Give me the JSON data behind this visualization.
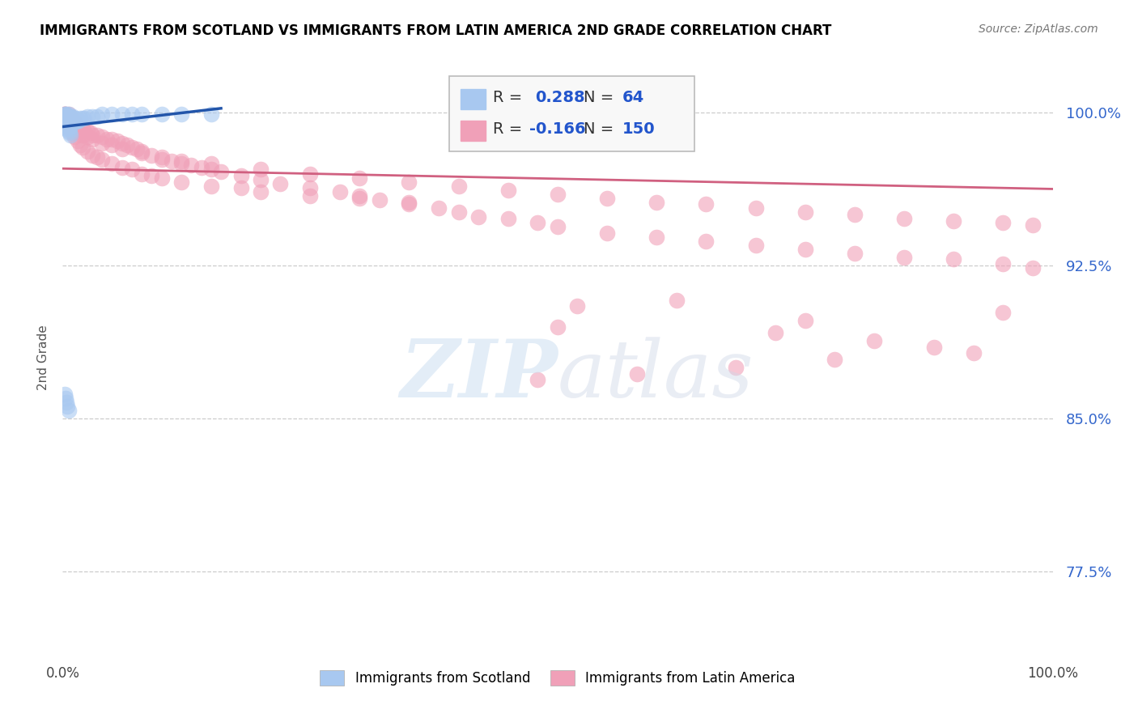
{
  "title": "IMMIGRANTS FROM SCOTLAND VS IMMIGRANTS FROM LATIN AMERICA 2ND GRADE CORRELATION CHART",
  "source": "Source: ZipAtlas.com",
  "ylabel": "2nd Grade",
  "ytick_labels": [
    "77.5%",
    "85.0%",
    "92.5%",
    "100.0%"
  ],
  "ytick_values": [
    0.775,
    0.85,
    0.925,
    1.0
  ],
  "xlim": [
    0.0,
    1.0
  ],
  "ylim": [
    0.735,
    1.025
  ],
  "blue_color": "#A8C8F0",
  "pink_color": "#F0A0B8",
  "blue_line_color": "#2255AA",
  "pink_line_color": "#D06080",
  "blue_scatter_x": [
    0.001,
    0.001,
    0.002,
    0.002,
    0.002,
    0.003,
    0.003,
    0.003,
    0.004,
    0.004,
    0.004,
    0.005,
    0.005,
    0.005,
    0.006,
    0.006,
    0.006,
    0.007,
    0.007,
    0.008,
    0.008,
    0.009,
    0.009,
    0.01,
    0.01,
    0.011,
    0.012,
    0.012,
    0.013,
    0.014,
    0.015,
    0.016,
    0.018,
    0.02,
    0.022,
    0.025,
    0.03,
    0.035,
    0.04,
    0.05,
    0.06,
    0.07,
    0.08,
    0.1,
    0.12,
    0.15,
    0.003,
    0.004,
    0.005,
    0.006,
    0.007,
    0.008,
    0.002,
    0.003,
    0.004,
    0.005,
    0.006,
    0.002,
    0.003,
    0.003,
    0.004,
    0.005,
    0.006,
    0.007
  ],
  "blue_scatter_y": [
    0.998,
    0.996,
    0.999,
    0.997,
    0.995,
    0.999,
    0.998,
    0.996,
    0.999,
    0.997,
    0.995,
    0.998,
    0.997,
    0.995,
    0.999,
    0.997,
    0.995,
    0.998,
    0.996,
    0.998,
    0.996,
    0.997,
    0.995,
    0.998,
    0.996,
    0.997,
    0.997,
    0.995,
    0.996,
    0.996,
    0.996,
    0.996,
    0.997,
    0.997,
    0.997,
    0.998,
    0.998,
    0.998,
    0.999,
    0.999,
    0.999,
    0.999,
    0.999,
    0.999,
    0.999,
    0.999,
    0.994,
    0.993,
    0.992,
    0.991,
    0.99,
    0.989,
    0.862,
    0.86,
    0.858,
    0.856,
    0.854,
    0.998,
    0.997,
    0.996,
    0.995,
    0.994,
    0.993,
    0.992
  ],
  "pink_scatter_x": [
    0.001,
    0.002,
    0.002,
    0.003,
    0.003,
    0.004,
    0.004,
    0.005,
    0.005,
    0.006,
    0.006,
    0.007,
    0.007,
    0.008,
    0.008,
    0.009,
    0.009,
    0.01,
    0.011,
    0.012,
    0.013,
    0.014,
    0.015,
    0.016,
    0.018,
    0.02,
    0.022,
    0.025,
    0.028,
    0.03,
    0.035,
    0.04,
    0.045,
    0.05,
    0.055,
    0.06,
    0.065,
    0.07,
    0.075,
    0.08,
    0.09,
    0.1,
    0.11,
    0.12,
    0.13,
    0.14,
    0.15,
    0.16,
    0.18,
    0.2,
    0.22,
    0.25,
    0.28,
    0.3,
    0.32,
    0.35,
    0.38,
    0.4,
    0.42,
    0.45,
    0.48,
    0.5,
    0.55,
    0.6,
    0.65,
    0.7,
    0.75,
    0.8,
    0.85,
    0.9,
    0.95,
    0.98,
    0.003,
    0.004,
    0.005,
    0.006,
    0.007,
    0.008,
    0.01,
    0.012,
    0.015,
    0.018,
    0.02,
    0.025,
    0.03,
    0.035,
    0.04,
    0.05,
    0.06,
    0.07,
    0.08,
    0.09,
    0.1,
    0.12,
    0.15,
    0.18,
    0.2,
    0.25,
    0.3,
    0.35,
    0.002,
    0.003,
    0.004,
    0.005,
    0.006,
    0.007,
    0.008,
    0.01,
    0.012,
    0.015,
    0.02,
    0.025,
    0.03,
    0.04,
    0.05,
    0.06,
    0.08,
    0.1,
    0.12,
    0.15,
    0.2,
    0.25,
    0.3,
    0.35,
    0.4,
    0.45,
    0.5,
    0.55,
    0.6,
    0.65,
    0.7,
    0.75,
    0.8,
    0.85,
    0.9,
    0.95,
    0.98,
    0.62,
    0.52,
    0.95,
    0.75,
    0.5,
    0.72,
    0.82,
    0.88,
    0.92,
    0.78,
    0.68,
    0.58,
    0.48
  ],
  "pink_scatter_y": [
    0.999,
    0.999,
    0.998,
    0.999,
    0.997,
    0.998,
    0.996,
    0.998,
    0.996,
    0.999,
    0.997,
    0.998,
    0.996,
    0.997,
    0.995,
    0.997,
    0.995,
    0.996,
    0.996,
    0.995,
    0.994,
    0.994,
    0.993,
    0.993,
    0.992,
    0.992,
    0.991,
    0.991,
    0.99,
    0.989,
    0.989,
    0.988,
    0.987,
    0.987,
    0.986,
    0.985,
    0.984,
    0.983,
    0.982,
    0.981,
    0.979,
    0.977,
    0.976,
    0.975,
    0.974,
    0.973,
    0.972,
    0.971,
    0.969,
    0.967,
    0.965,
    0.963,
    0.961,
    0.959,
    0.957,
    0.955,
    0.953,
    0.951,
    0.949,
    0.948,
    0.946,
    0.944,
    0.941,
    0.939,
    0.937,
    0.935,
    0.933,
    0.931,
    0.929,
    0.928,
    0.926,
    0.924,
    0.998,
    0.997,
    0.996,
    0.995,
    0.993,
    0.992,
    0.99,
    0.988,
    0.986,
    0.984,
    0.983,
    0.981,
    0.979,
    0.978,
    0.977,
    0.975,
    0.973,
    0.972,
    0.97,
    0.969,
    0.968,
    0.966,
    0.964,
    0.963,
    0.961,
    0.959,
    0.958,
    0.956,
    0.999,
    0.998,
    0.997,
    0.997,
    0.996,
    0.995,
    0.994,
    0.993,
    0.992,
    0.991,
    0.989,
    0.988,
    0.987,
    0.985,
    0.984,
    0.982,
    0.98,
    0.978,
    0.976,
    0.975,
    0.972,
    0.97,
    0.968,
    0.966,
    0.964,
    0.962,
    0.96,
    0.958,
    0.956,
    0.955,
    0.953,
    0.951,
    0.95,
    0.948,
    0.947,
    0.946,
    0.945,
    0.908,
    0.905,
    0.902,
    0.898,
    0.895,
    0.892,
    0.888,
    0.885,
    0.882,
    0.879,
    0.875,
    0.872,
    0.869
  ],
  "pink_line_start_x": 0.0,
  "pink_line_start_y": 0.9725,
  "pink_line_end_x": 1.0,
  "pink_line_end_y": 0.9625,
  "blue_line_start_x": 0.0,
  "blue_line_start_y": 0.993,
  "blue_line_end_x": 0.16,
  "blue_line_end_y": 1.002
}
